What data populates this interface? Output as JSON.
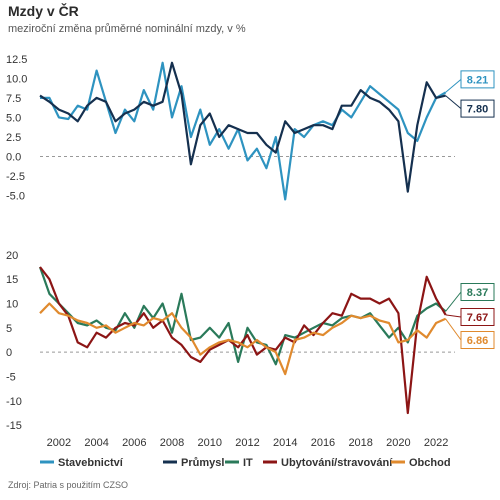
{
  "title": "Mzdy v ČR",
  "subtitle": "meziroční změna průměrné nominální mzdy, v %",
  "source": "Zdroj: Patria s použitím CZSO",
  "chart_data": [
    {
      "type": "line",
      "panel": "top",
      "ylim": [
        -7.5,
        13
      ],
      "yticks": [
        -5,
        -2.5,
        0,
        2.5,
        5,
        7.5,
        10,
        12.5
      ],
      "ytick_labels": [
        "-5.0",
        "-2.5",
        "0.0",
        "2.5",
        "5.0",
        "7.5",
        "10.0",
        "12.5"
      ],
      "zero_line": true,
      "series": [
        {
          "name": "Stavebnictví",
          "color": "#2e93c0",
          "x": [
            2001.0,
            2001.5,
            2002.0,
            2002.5,
            2003.0,
            2003.5,
            2004.0,
            2004.5,
            2005.0,
            2005.5,
            2006.0,
            2006.5,
            2007.0,
            2007.5,
            2008.0,
            2008.5,
            2009.0,
            2009.5,
            2010.0,
            2010.5,
            2011.0,
            2011.5,
            2012.0,
            2012.5,
            2013.0,
            2013.5,
            2014.0,
            2014.5,
            2015.0,
            2015.5,
            2016.0,
            2016.5,
            2017.0,
            2017.5,
            2018.0,
            2018.5,
            2019.0,
            2019.5,
            2020.0,
            2020.5,
            2021.0,
            2021.5,
            2022.0,
            2022.5
          ],
          "y": [
            7.5,
            7.5,
            5.0,
            4.8,
            6.5,
            6.0,
            11.0,
            7.0,
            3.0,
            6.0,
            4.5,
            8.5,
            6.0,
            12.0,
            5.0,
            9.0,
            2.5,
            6.0,
            1.5,
            3.5,
            1.0,
            3.5,
            -0.5,
            1.0,
            -1.5,
            2.5,
            -5.5,
            3.5,
            2.5,
            4.0,
            4.5,
            4.0,
            6.0,
            5.0,
            7.0,
            9.0,
            8.0,
            7.0,
            6.0,
            3.0,
            2.0,
            5.0,
            7.5,
            8.21
          ]
        },
        {
          "name": "Průmysl",
          "color": "#15304f",
          "x": [
            2001.0,
            2001.5,
            2002.0,
            2002.5,
            2003.0,
            2003.5,
            2004.0,
            2004.5,
            2005.0,
            2005.5,
            2006.0,
            2006.5,
            2007.0,
            2007.5,
            2008.0,
            2008.5,
            2009.0,
            2009.5,
            2010.0,
            2010.5,
            2011.0,
            2011.5,
            2012.0,
            2012.5,
            2013.0,
            2013.5,
            2014.0,
            2014.5,
            2015.0,
            2015.5,
            2016.0,
            2016.5,
            2017.0,
            2017.5,
            2018.0,
            2018.5,
            2019.0,
            2019.5,
            2020.0,
            2020.5,
            2021.0,
            2021.5,
            2022.0,
            2022.5
          ],
          "y": [
            7.8,
            7.0,
            6.0,
            5.5,
            4.5,
            6.5,
            7.5,
            7.0,
            4.5,
            5.5,
            6.0,
            7.0,
            6.5,
            7.0,
            12.0,
            8.0,
            -1.0,
            4.0,
            5.5,
            2.5,
            4.0,
            3.5,
            3.0,
            3.0,
            1.5,
            0.5,
            4.5,
            3.0,
            3.5,
            4.0,
            4.0,
            3.5,
            6.5,
            6.5,
            8.5,
            7.5,
            7.0,
            6.0,
            4.5,
            -4.5,
            4.0,
            9.5,
            7.5,
            7.8
          ]
        },
        {
          "name": "Stavebnictví (label)",
          "color": "#2e93c0",
          "label": "8.21",
          "value": 8.21
        },
        {
          "name": "Průmysl (label)",
          "color": "#15304f",
          "label": "7.80",
          "value": 7.8
        }
      ]
    },
    {
      "type": "line",
      "panel": "bottom",
      "ylim": [
        -16,
        21
      ],
      "yticks": [
        -15,
        -10,
        -5,
        0,
        5,
        10,
        15,
        20
      ],
      "ytick_labels": [
        "-15",
        "-10",
        "-5",
        "0",
        "5",
        "10",
        "15",
        "20"
      ],
      "zero_line": true,
      "xlim": [
        2001,
        2023
      ],
      "xticks": [
        2002,
        2004,
        2006,
        2008,
        2010,
        2012,
        2014,
        2016,
        2018,
        2020,
        2022
      ],
      "series": [
        {
          "name": "IT",
          "color": "#2a7a5a",
          "x": [
            2001.0,
            2001.5,
            2002.0,
            2002.5,
            2003.0,
            2003.5,
            2004.0,
            2004.5,
            2005.0,
            2005.5,
            2006.0,
            2006.5,
            2007.0,
            2007.5,
            2008.0,
            2008.5,
            2009.0,
            2009.5,
            2010.0,
            2010.5,
            2011.0,
            2011.5,
            2012.0,
            2012.5,
            2013.0,
            2013.5,
            2014.0,
            2014.5,
            2015.0,
            2015.5,
            2016.0,
            2016.5,
            2017.0,
            2017.5,
            2018.0,
            2018.5,
            2019.0,
            2019.5,
            2020.0,
            2020.5,
            2021.0,
            2021.5,
            2022.0,
            2022.5
          ],
          "y": [
            17.5,
            12.0,
            10.0,
            8.0,
            6.0,
            5.5,
            6.5,
            5.0,
            4.5,
            8.0,
            5.0,
            9.5,
            7.0,
            10.0,
            4.0,
            12.0,
            2.5,
            3.0,
            5.0,
            3.0,
            6.0,
            -2.0,
            5.0,
            2.0,
            1.5,
            -2.5,
            3.5,
            3.0,
            4.0,
            5.0,
            6.0,
            5.5,
            7.0,
            7.5,
            7.0,
            8.0,
            5.5,
            3.0,
            5.0,
            2.0,
            7.5,
            9.0,
            10.0,
            8.37
          ]
        },
        {
          "name": "Ubytování/stravování",
          "color": "#8c1515",
          "x": [
            2001.0,
            2001.5,
            2002.0,
            2002.5,
            2003.0,
            2003.5,
            2004.0,
            2004.5,
            2005.0,
            2005.5,
            2006.0,
            2006.5,
            2007.0,
            2007.5,
            2008.0,
            2008.5,
            2009.0,
            2009.5,
            2010.0,
            2010.5,
            2011.0,
            2011.5,
            2012.0,
            2012.5,
            2013.0,
            2013.5,
            2014.0,
            2014.5,
            2015.0,
            2015.5,
            2016.0,
            2016.5,
            2017.0,
            2017.5,
            2018.0,
            2018.5,
            2019.0,
            2019.5,
            2020.0,
            2020.5,
            2021.0,
            2021.5,
            2022.0,
            2022.5
          ],
          "y": [
            17.5,
            15.0,
            10.0,
            7.5,
            2.0,
            1.0,
            4.0,
            3.0,
            5.0,
            6.0,
            5.5,
            8.0,
            5.0,
            6.5,
            3.0,
            1.5,
            -1.0,
            -2.0,
            0.5,
            1.5,
            2.5,
            1.0,
            3.5,
            -0.5,
            1.0,
            0.5,
            3.0,
            2.0,
            5.5,
            3.5,
            6.0,
            8.0,
            7.5,
            12.0,
            11.0,
            11.0,
            10.0,
            11.0,
            8.0,
            -12.5,
            6.0,
            15.5,
            11.0,
            7.67
          ]
        },
        {
          "name": "Obchod",
          "color": "#e08a2e",
          "x": [
            2001.0,
            2001.5,
            2002.0,
            2002.5,
            2003.0,
            2003.5,
            2004.0,
            2004.5,
            2005.0,
            2005.5,
            2006.0,
            2006.5,
            2007.0,
            2007.5,
            2008.0,
            2008.5,
            2009.0,
            2009.5,
            2010.0,
            2010.5,
            2011.0,
            2011.5,
            2012.0,
            2012.5,
            2013.0,
            2013.5,
            2014.0,
            2014.5,
            2015.0,
            2015.5,
            2016.0,
            2016.5,
            2017.0,
            2017.5,
            2018.0,
            2018.5,
            2019.0,
            2019.5,
            2020.0,
            2020.5,
            2021.0,
            2021.5,
            2022.0,
            2022.5
          ],
          "y": [
            8.0,
            10.0,
            8.0,
            7.5,
            6.5,
            6.0,
            5.0,
            5.5,
            4.0,
            5.0,
            6.0,
            5.5,
            7.0,
            6.5,
            8.0,
            5.0,
            3.0,
            -0.5,
            1.0,
            2.0,
            2.5,
            2.0,
            1.0,
            2.5,
            1.0,
            0.0,
            -4.5,
            2.5,
            3.0,
            4.0,
            3.5,
            5.0,
            6.0,
            7.5,
            7.0,
            7.5,
            6.5,
            6.0,
            2.0,
            2.5,
            4.5,
            3.0,
            6.0,
            6.86
          ]
        },
        {
          "name": "IT (label)",
          "color": "#2a7a5a",
          "label": "8.37",
          "value": 8.37
        },
        {
          "name": "Ubytování (label)",
          "color": "#8c1515",
          "label": "7.67",
          "value": 7.67
        },
        {
          "name": "Obchod (label)",
          "color": "#e08a2e",
          "label": "6.86",
          "value": 6.86
        }
      ]
    }
  ],
  "legend": [
    {
      "label": "Stavebnictví",
      "color": "#2e93c0"
    },
    {
      "label": "Průmysl",
      "color": "#15304f"
    },
    {
      "label": "IT",
      "color": "#2a7a5a"
    },
    {
      "label": "Ubytování/stravování",
      "color": "#8c1515"
    },
    {
      "label": "Obchod",
      "color": "#e08a2e"
    }
  ]
}
